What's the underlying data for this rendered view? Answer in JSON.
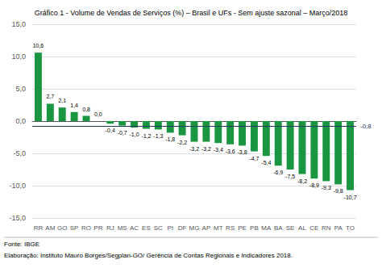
{
  "chart_data": {
    "type": "bar",
    "title": "Gráfico 1 - Volume de Vendas de Serviços (%) – Brasil e UFs - Sem ajuste sazonal – Março/2018",
    "categories": [
      "RR",
      "AM",
      "GO",
      "SP",
      "RO",
      "PR",
      "RJ",
      "MS",
      "AC",
      "ES",
      "SC",
      "PI",
      "DF",
      "MG",
      "AP",
      "MT",
      "RS",
      "PE",
      "PB",
      "MA",
      "BA",
      "SE",
      "AL",
      "CE",
      "RN",
      "PA",
      "TO"
    ],
    "values": [
      10.6,
      2.7,
      2.1,
      1.4,
      0.8,
      0.0,
      -0.4,
      -0.7,
      -1.0,
      -1.2,
      -1.3,
      -1.8,
      -2.2,
      -3.2,
      -3.2,
      -3.4,
      -3.6,
      -3.8,
      -4.7,
      -5.4,
      -6.9,
      -7.5,
      -8.2,
      -8.9,
      -9.3,
      -9.8,
      -10.7
    ],
    "value_labels": [
      "10,6",
      "2,7",
      "2,1",
      "1,4",
      "0,8",
      "0,0",
      "-0,4",
      "-0,7",
      "-1,0",
      "-1,2",
      "-1,3",
      "-1,8",
      "-2,2",
      "-3,2",
      "-3,2",
      "-3,4",
      "-3,6",
      "-3,8",
      "-4,7",
      "-5,4",
      "-6,9",
      "-7,5",
      "-8,2",
      "-8,9",
      "-9,3",
      "-9,8",
      "-10,7"
    ],
    "data_labels": true,
    "color": "#1a9641",
    "ylim": [
      -15.0,
      15.0
    ],
    "yticks": [
      {
        "value": -15.0,
        "label": "-15,0"
      },
      {
        "value": -10.0,
        "label": "-10,0"
      },
      {
        "value": -5.0,
        "label": "-5,0"
      },
      {
        "value": 0.0,
        "label": "0,0"
      },
      {
        "value": 5.0,
        "label": "5,0"
      },
      {
        "value": 10.0,
        "label": "10,0"
      },
      {
        "value": 15.0,
        "label": "15,0"
      }
    ],
    "grid": true,
    "annotations": [
      {
        "y": -0.8,
        "text": "-0,8",
        "color": "#1f3864"
      }
    ],
    "footer": [
      "Fonte: IBGE",
      "Elaboração: Instituto Mauro Borges/Segplan-GO/ Gerência de Contas Regionais e Indicadores 2018."
    ]
  }
}
